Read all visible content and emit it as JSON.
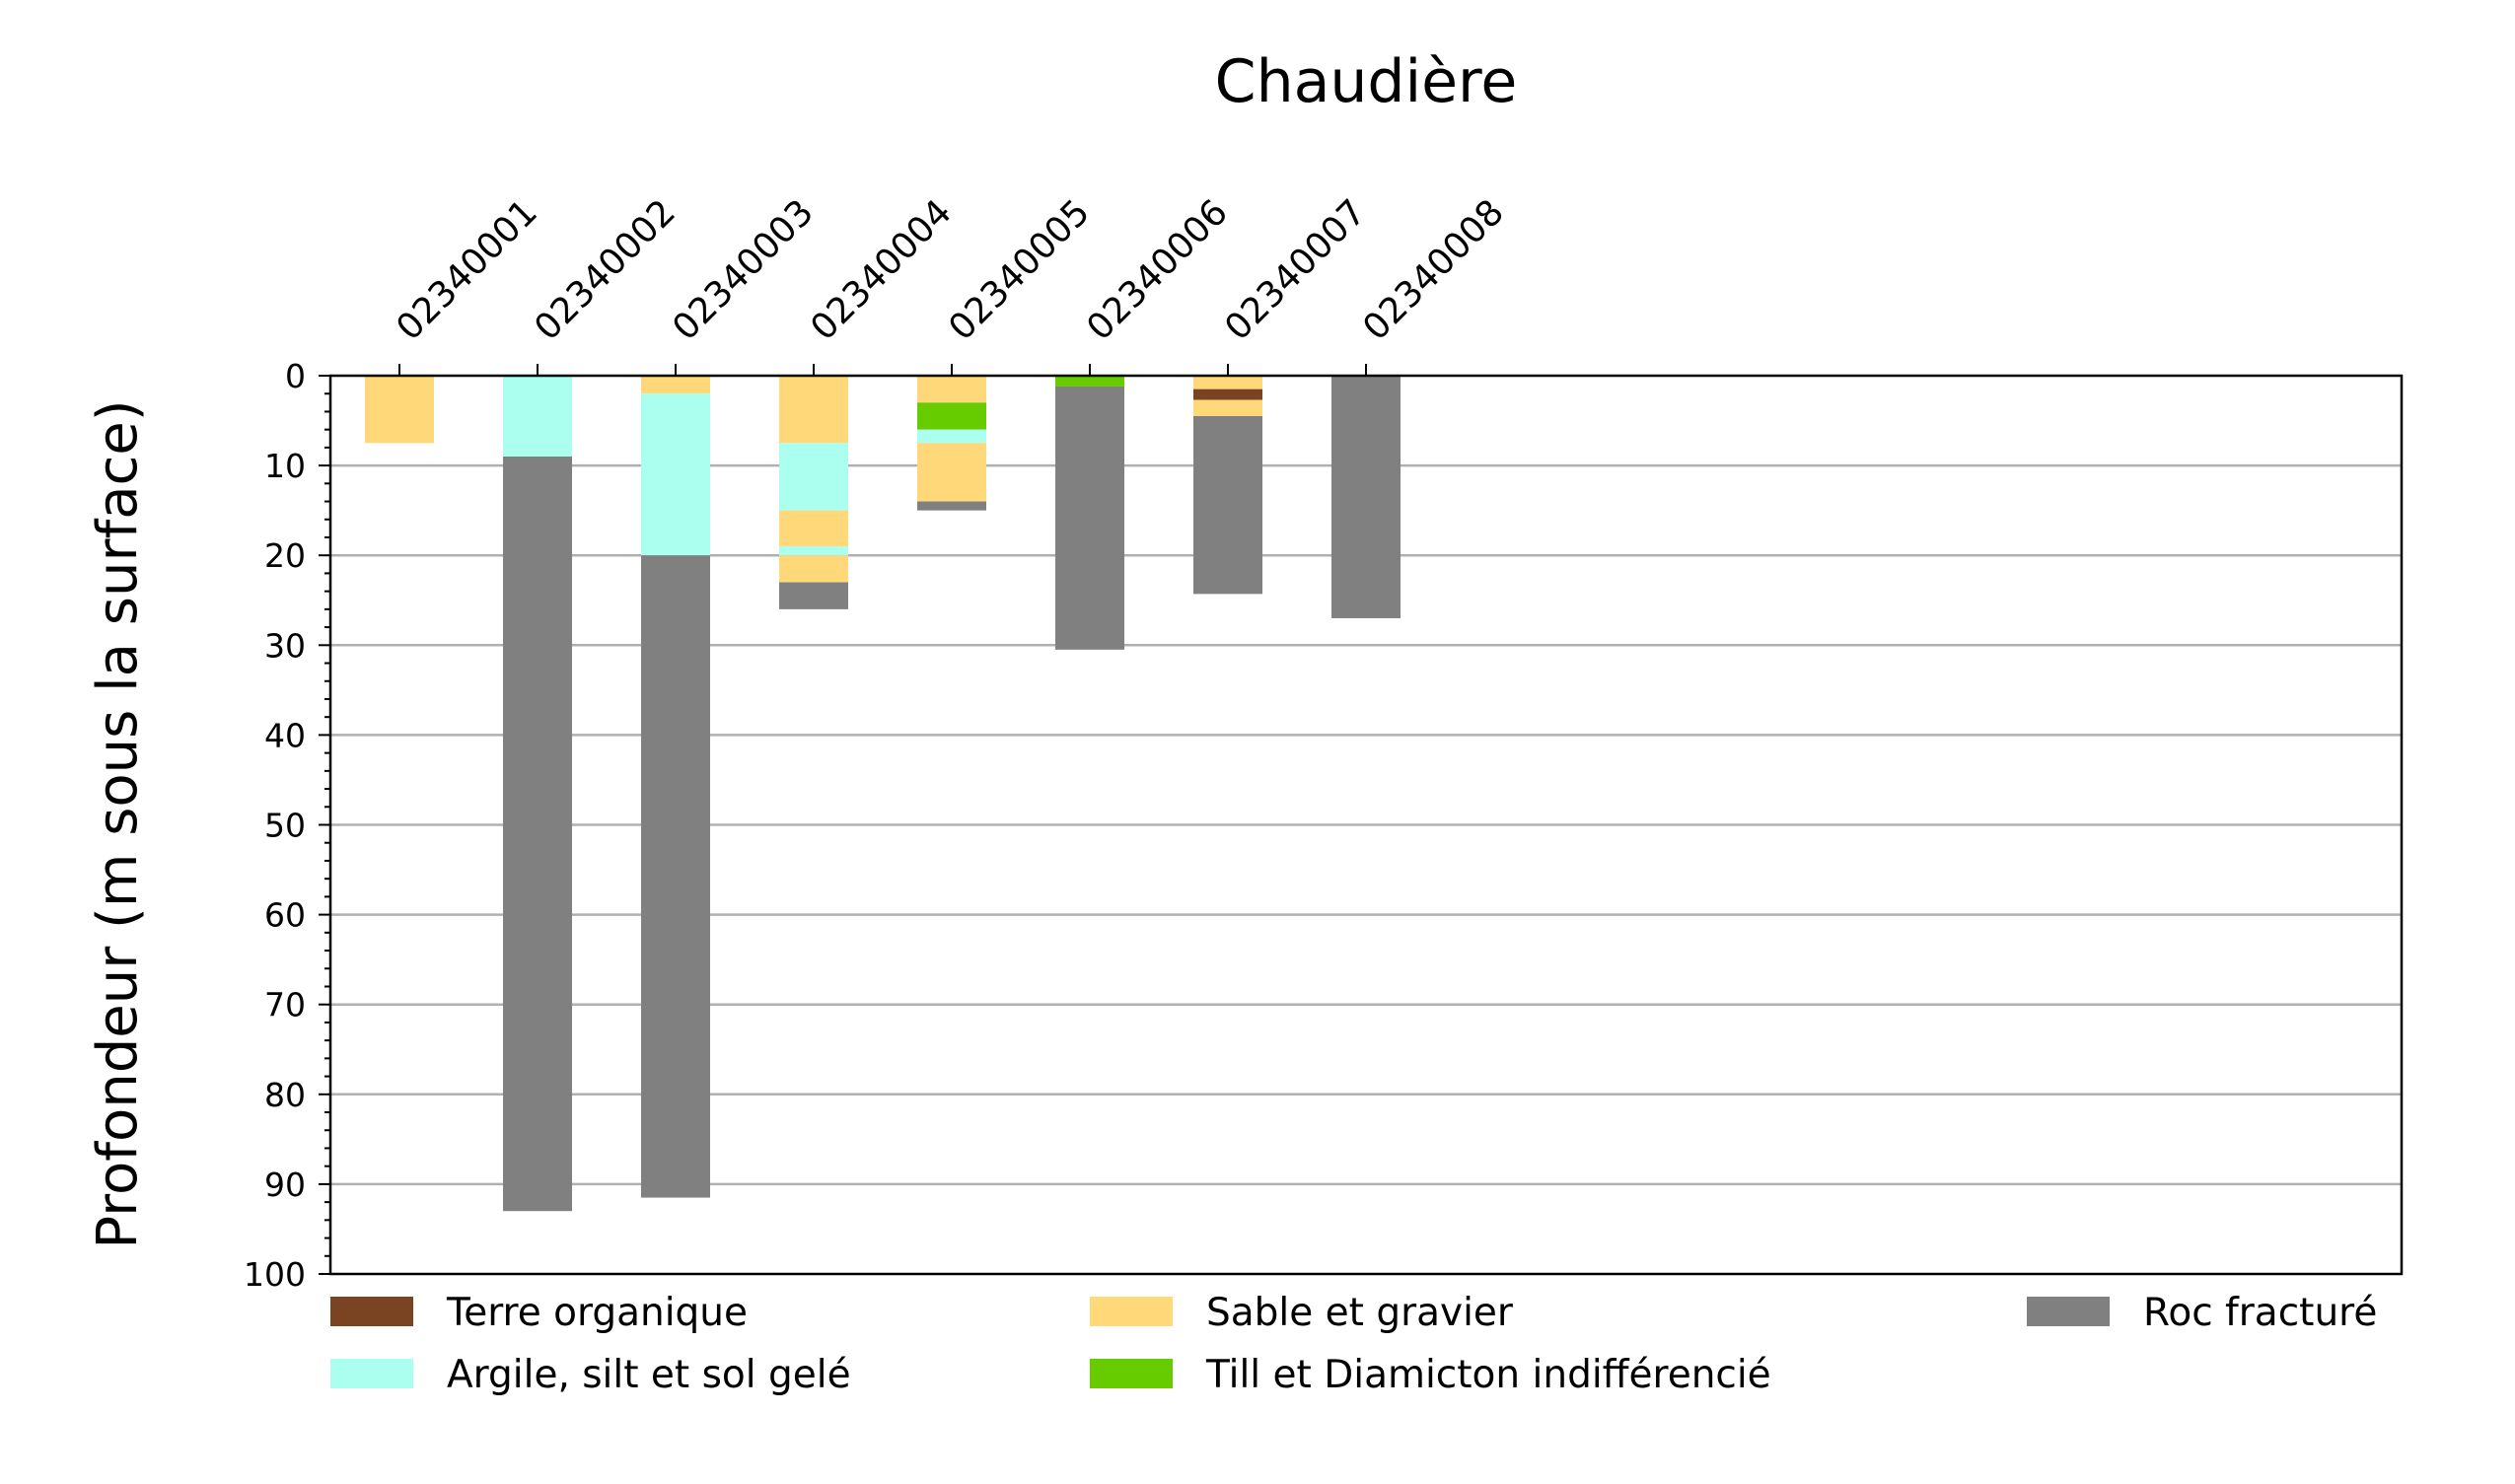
{
  "chart_data": {
    "type": "bar",
    "subtype": "stacked-depth-log",
    "title": "Chaudière",
    "ylabel": "Profondeur (m sous la surface)",
    "xlabel": "",
    "ylim": [
      0,
      100
    ],
    "y_inverted": true,
    "y_ticks": [
      0,
      10,
      20,
      30,
      40,
      50,
      60,
      70,
      80,
      90,
      100
    ],
    "grid": "horizontal",
    "x_axis_position": "top",
    "legend_position": "bottom",
    "categories": [
      "02340001",
      "02340002",
      "02340003",
      "02340004",
      "02340005",
      "02340006",
      "02340007",
      "02340008"
    ],
    "materials": [
      {
        "key": "terre",
        "label": "Terre organique",
        "color": "#7a4422"
      },
      {
        "key": "argile",
        "label": "Argile, silt et sol gelé",
        "color": "#aaffee"
      },
      {
        "key": "sable",
        "label": "Sable et gravier",
        "color": "#ffd87a"
      },
      {
        "key": "till",
        "label": "Till et Diamicton indifférencié",
        "color": "#66cc00"
      },
      {
        "key": "roc",
        "label": "Roc fracturé",
        "color": "#808080"
      }
    ],
    "wells": [
      {
        "id": "02340001",
        "layers": [
          {
            "top": 0,
            "bottom": 7.5,
            "material": "sable"
          }
        ]
      },
      {
        "id": "02340002",
        "layers": [
          {
            "top": 0,
            "bottom": 9,
            "material": "argile"
          },
          {
            "top": 9,
            "bottom": 93,
            "material": "roc"
          }
        ]
      },
      {
        "id": "02340003",
        "layers": [
          {
            "top": 0,
            "bottom": 2,
            "material": "sable"
          },
          {
            "top": 2,
            "bottom": 20,
            "material": "argile"
          },
          {
            "top": 20,
            "bottom": 91.5,
            "material": "roc"
          }
        ]
      },
      {
        "id": "02340004",
        "layers": [
          {
            "top": 0,
            "bottom": 7.5,
            "material": "sable"
          },
          {
            "top": 7.5,
            "bottom": 15,
            "material": "argile"
          },
          {
            "top": 15,
            "bottom": 19,
            "material": "sable"
          },
          {
            "top": 19,
            "bottom": 20,
            "material": "argile"
          },
          {
            "top": 20,
            "bottom": 23,
            "material": "sable"
          },
          {
            "top": 23,
            "bottom": 26,
            "material": "roc"
          }
        ]
      },
      {
        "id": "02340005",
        "layers": [
          {
            "top": 0,
            "bottom": 3,
            "material": "sable"
          },
          {
            "top": 3,
            "bottom": 6,
            "material": "till"
          },
          {
            "top": 6,
            "bottom": 7.5,
            "material": "argile"
          },
          {
            "top": 7.5,
            "bottom": 14,
            "material": "sable"
          },
          {
            "top": 14,
            "bottom": 15,
            "material": "roc"
          }
        ]
      },
      {
        "id": "02340006",
        "layers": [
          {
            "top": 0,
            "bottom": 1.2,
            "material": "till"
          },
          {
            "top": 1.2,
            "bottom": 30.5,
            "material": "roc"
          }
        ]
      },
      {
        "id": "02340007",
        "layers": [
          {
            "top": 0,
            "bottom": 1.5,
            "material": "sable"
          },
          {
            "top": 1.5,
            "bottom": 2.7,
            "material": "terre"
          },
          {
            "top": 2.7,
            "bottom": 4.5,
            "material": "sable"
          },
          {
            "top": 4.5,
            "bottom": 24.3,
            "material": "roc"
          }
        ]
      },
      {
        "id": "02340008",
        "layers": [
          {
            "top": 0,
            "bottom": 27,
            "material": "roc"
          }
        ]
      }
    ],
    "x_slots": 15
  }
}
